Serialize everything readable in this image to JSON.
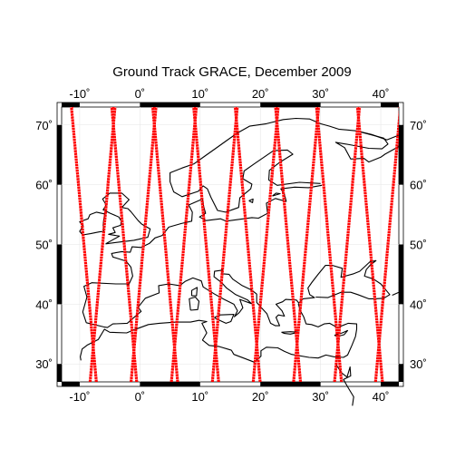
{
  "title": "Ground Track GRACE, December 2009",
  "frame": {
    "lon_range": [
      -13,
      43
    ],
    "lat_range": [
      27,
      73
    ],
    "lon_ticks": [
      {
        "value": -10,
        "label": "-10˚"
      },
      {
        "value": 0,
        "label": "0˚"
      },
      {
        "value": 10,
        "label": "10˚"
      },
      {
        "value": 20,
        "label": "20˚"
      },
      {
        "value": 30,
        "label": "30˚"
      },
      {
        "value": 40,
        "label": "40˚"
      }
    ],
    "lat_ticks": [
      {
        "value": 30,
        "label": "30˚"
      },
      {
        "value": 40,
        "label": "40˚"
      },
      {
        "value": 50,
        "label": "50˚"
      },
      {
        "value": 60,
        "label": "60˚"
      },
      {
        "value": 70,
        "label": "70˚"
      }
    ]
  },
  "colors": {
    "track": "#ff0000",
    "coast": "#000000",
    "frame_fill": "#000000"
  },
  "chart_data": {
    "type": "map",
    "title": "Ground Track GRACE, December 2009",
    "xlim": [
      -13,
      43
    ],
    "ylim": [
      27,
      73
    ],
    "ground_track_passes": {
      "ascending_crossing_lon_at_lat_50": [
        -9.3,
        -2.6,
        4.2,
        11.0,
        17.9,
        24.6,
        31.4,
        38.2
      ],
      "descending_crossing_lon_at_lat_50": [
        -6.2,
        0.6,
        7.3,
        14.1,
        20.9,
        27.6,
        34.4,
        41.2
      ]
    }
  }
}
